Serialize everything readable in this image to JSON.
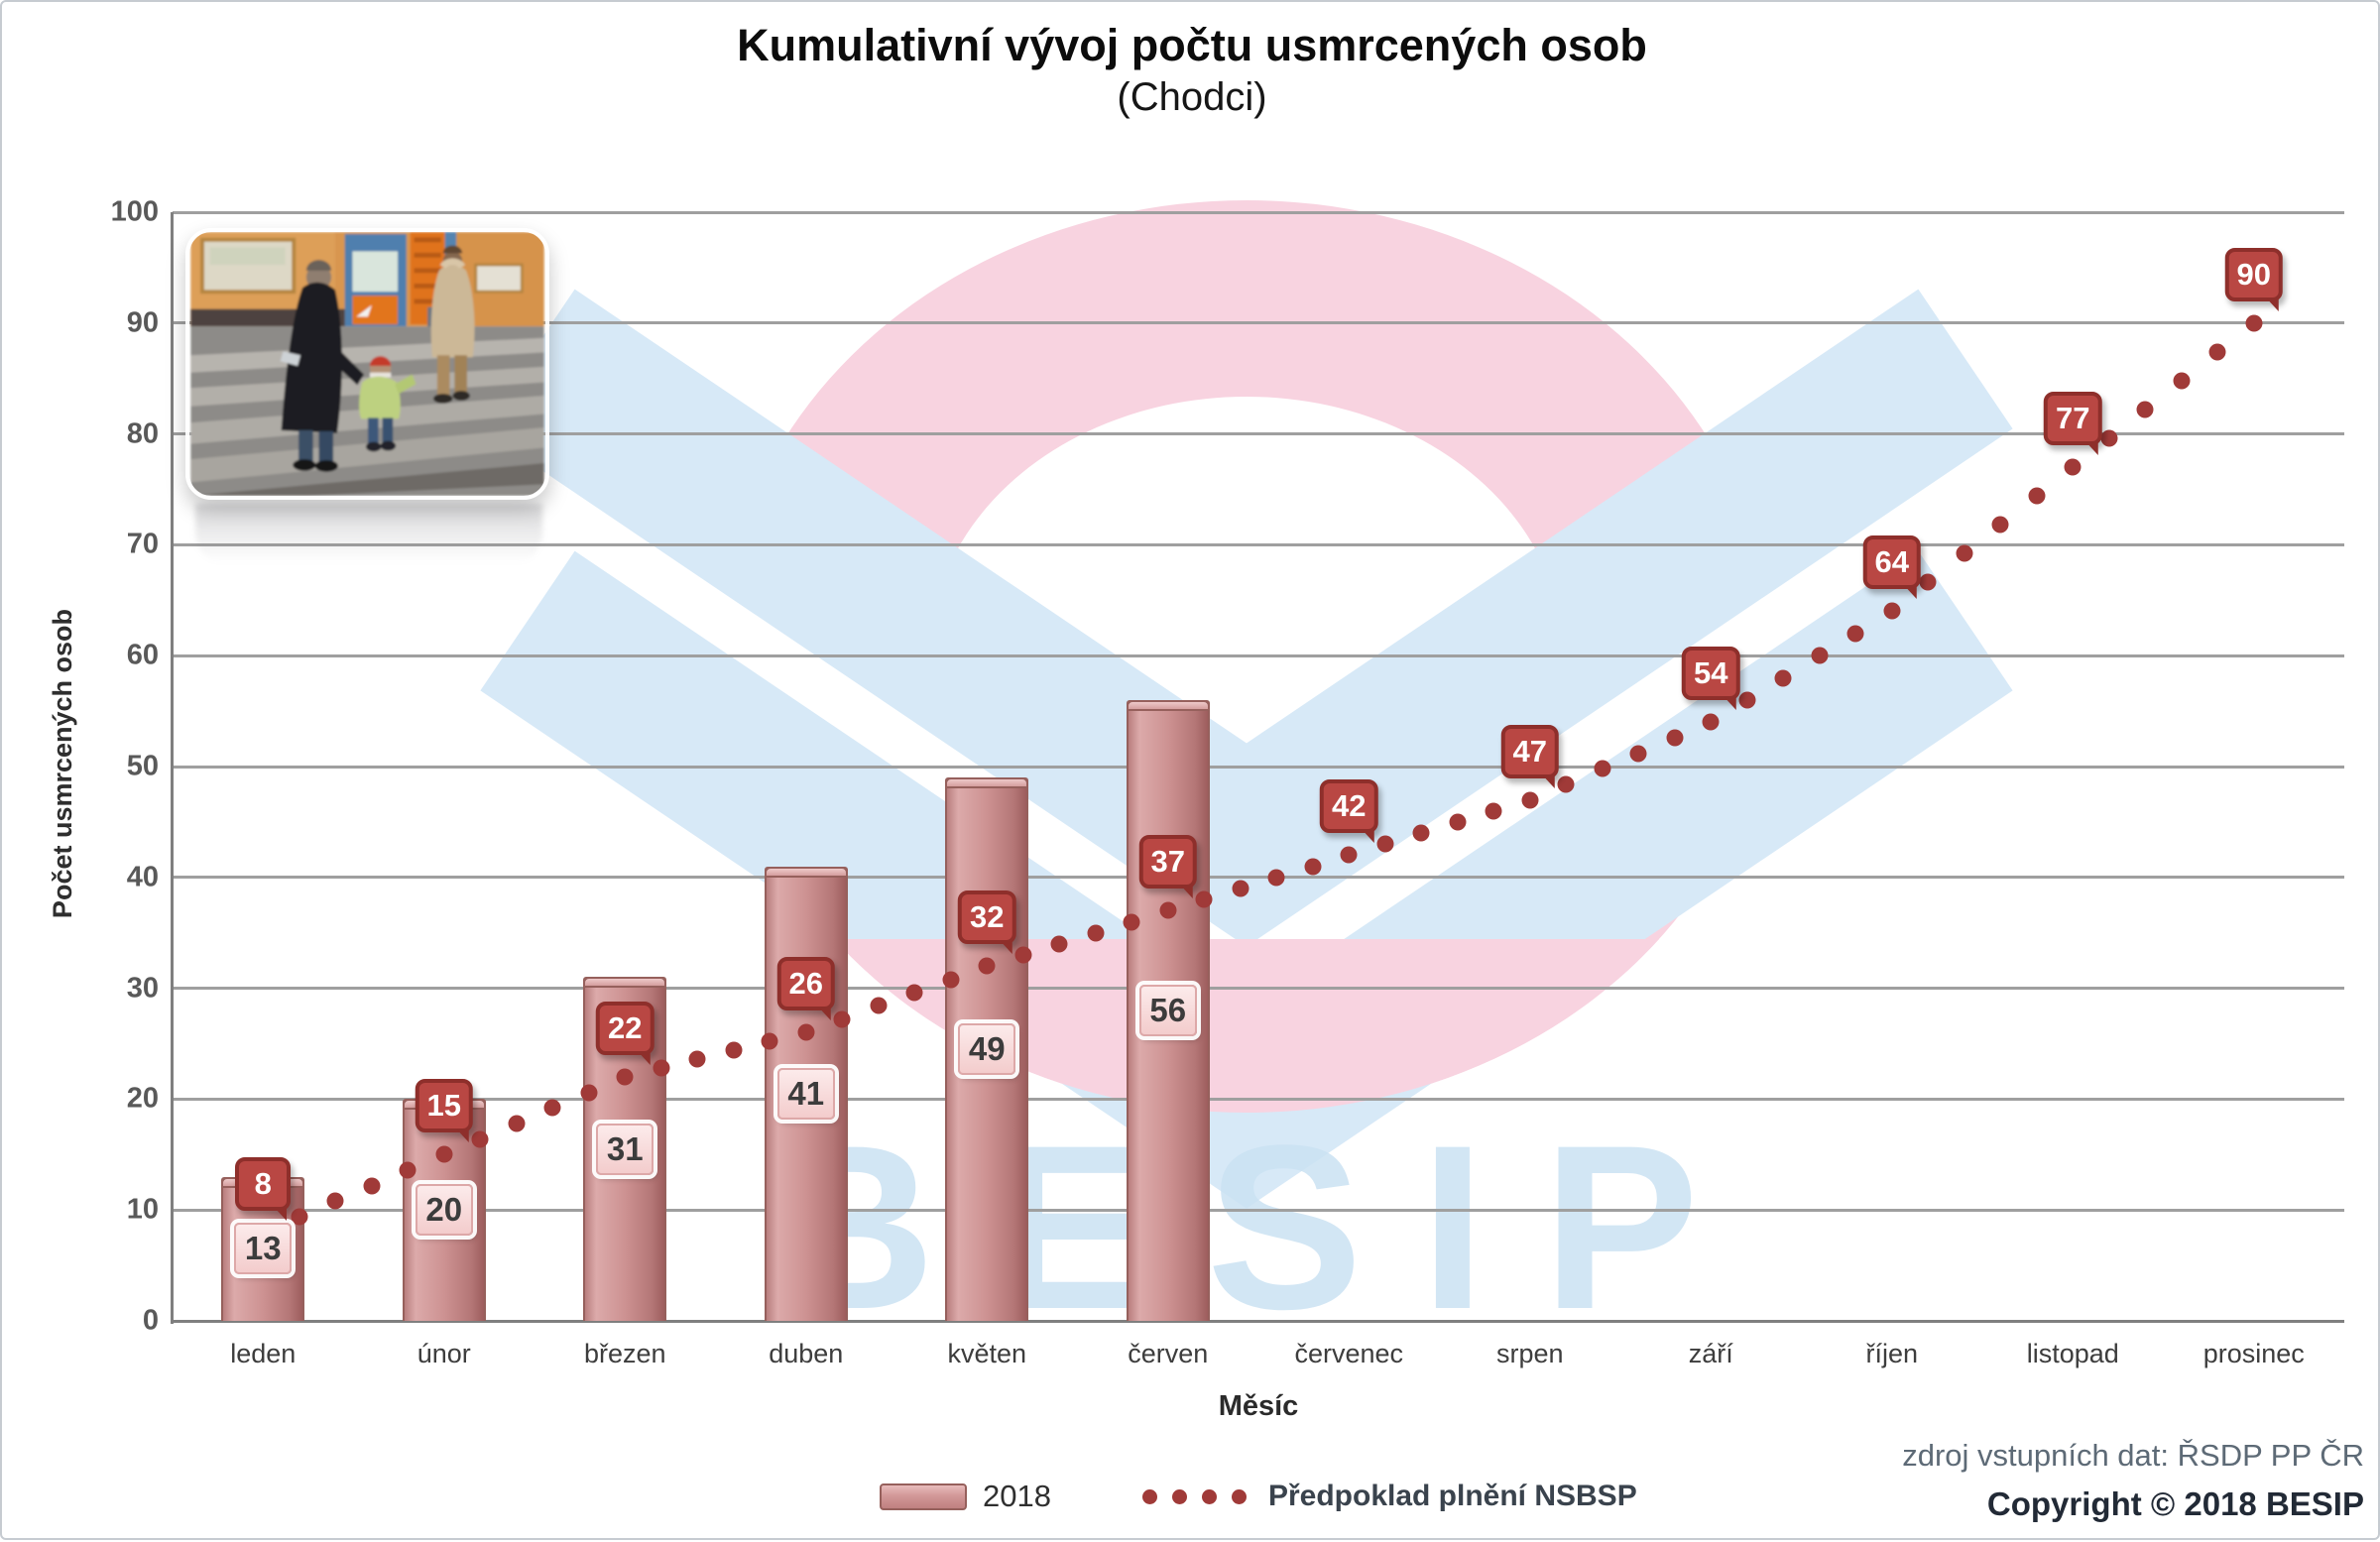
{
  "title": {
    "main": "Kumulativní vývoj počtu usmrcených osob",
    "sub": "(Chodci)"
  },
  "y_axis": {
    "label": "Počet usmrcených osob",
    "ticks": [
      0,
      10,
      20,
      30,
      40,
      50,
      60,
      70,
      80,
      90,
      100
    ],
    "max": 100
  },
  "x_axis": {
    "label": "Měsíc"
  },
  "chart_data": {
    "type": "bar",
    "categories": [
      "leden",
      "únor",
      "březen",
      "duben",
      "květen",
      "červen",
      "červenec",
      "srpen",
      "září",
      "říjen",
      "listopad",
      "prosinec"
    ],
    "series": [
      {
        "name": "2018",
        "type": "bar",
        "values": [
          13,
          20,
          31,
          41,
          49,
          56,
          null,
          null,
          null,
          null,
          null,
          null
        ]
      },
      {
        "name": "Předpoklad plnění NSBSP",
        "type": "dotted-line",
        "values": [
          8,
          15,
          22,
          26,
          32,
          37,
          42,
          47,
          54,
          64,
          77,
          90
        ]
      }
    ],
    "title": "Kumulativní vývoj počtu usmrcených osob (Chodci)",
    "xlabel": "Měsíc",
    "ylabel": "Počet usmrcených osob",
    "ylim": [
      0,
      100
    ],
    "grid": true,
    "legend_position": "bottom"
  },
  "legend": {
    "items": [
      {
        "label": "2018",
        "type": "bar"
      },
      {
        "label": "Předpoklad plnění NSBSP",
        "type": "dotted-line"
      }
    ]
  },
  "source": {
    "line1": "zdroj vstupních dat: ŘSDP PP ČR",
    "line2": "Copyright © 2018 BESIP"
  },
  "watermark": {
    "text": "BESIP"
  },
  "colors": {
    "bar_fill": "#c88a8a",
    "bar_border": "#96605c",
    "bar_label_text": "#3c3c3c",
    "line_dot": "#a03a38",
    "line_label_bg": "#b94743",
    "line_label_border": "#8e2f2b",
    "line_label_text": "#ffffff",
    "grid": "#9f9f9f",
    "axis": "#7f7f7f",
    "watermark_pink": "#f8d3e0",
    "watermark_blue": "#d7e9f7",
    "watermark_text": "#cbe2f3"
  }
}
